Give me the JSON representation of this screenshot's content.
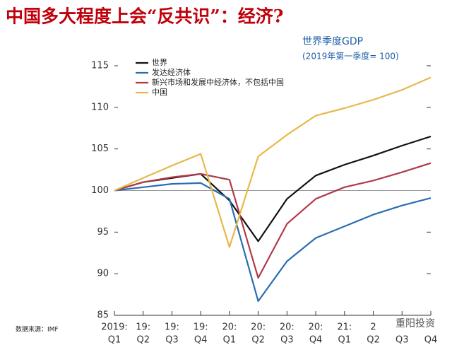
{
  "title": "中国多大程度上会“反共识”：经济?",
  "source": "数据来源：IMF",
  "watermark": "重阳投资",
  "chart_data": {
    "type": "line",
    "title": "世界季度GDP",
    "subtitle": "(2019年第一季度= 100)",
    "categories": [
      [
        "2019:",
        "Q1"
      ],
      [
        "19:",
        "Q2"
      ],
      [
        "19:",
        "Q3"
      ],
      [
        "19:",
        "Q4"
      ],
      [
        "20:",
        "Q1"
      ],
      [
        "20:",
        "Q2"
      ],
      [
        "20:",
        "Q3"
      ],
      [
        "20:",
        "Q4"
      ],
      [
        "21:",
        "Q1"
      ],
      [
        "2",
        "Q2"
      ],
      [
        null,
        "Q3"
      ],
      [
        null,
        "Q4"
      ]
    ],
    "series": [
      {
        "name": "世界",
        "color": "#111111",
        "values": [
          100,
          101,
          101.5,
          102,
          98.8,
          93.9,
          99,
          101.8,
          103.1,
          104.2,
          105.4,
          106.5
        ]
      },
      {
        "name": "发达经济体",
        "color": "#2a6db0",
        "values": [
          100,
          100.4,
          100.8,
          100.9,
          99,
          86.7,
          91.5,
          94.3,
          95.7,
          97.1,
          98.2,
          99.1
        ]
      },
      {
        "name": "新兴市场和发展中经济体，不包括中国",
        "color": "#b03a48",
        "values": [
          100,
          101,
          101.6,
          102,
          101.3,
          89.5,
          96,
          99,
          100.4,
          101.2,
          102.2,
          103.3
        ]
      },
      {
        "name": "中国",
        "color": "#e8b84a",
        "values": [
          100,
          101.5,
          103,
          104.4,
          93.2,
          104.1,
          106.7,
          109,
          109.9,
          110.9,
          112.1,
          113.6
        ]
      }
    ],
    "ylim": [
      85,
      115
    ],
    "yticks": [
      85,
      90,
      95,
      100,
      105,
      110,
      115
    ],
    "reference_line": 100,
    "legend": "upper left"
  }
}
